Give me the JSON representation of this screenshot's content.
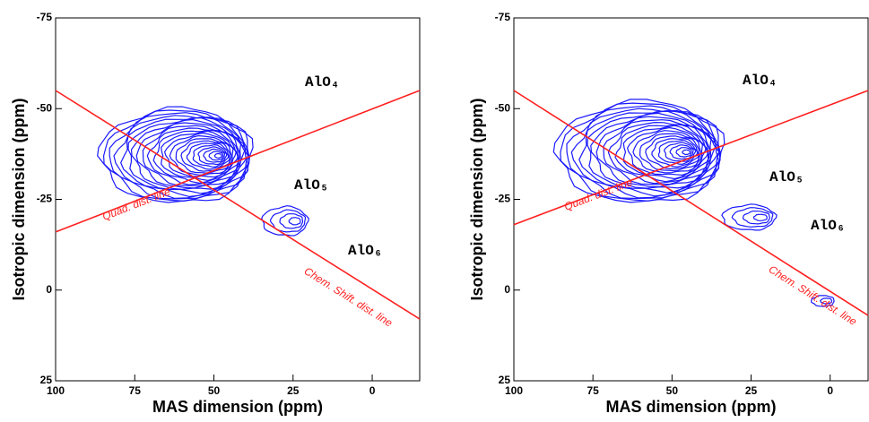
{
  "chart_data": [
    {
      "type": "contour",
      "xlabel": "MAS dimension (ppm)",
      "ylabel": "Isotropic dimension (ppm)",
      "xlim": [
        100,
        -15
      ],
      "xticks": [
        100,
        75,
        50,
        25,
        0
      ],
      "ylim": [
        -75,
        25
      ],
      "yticks": [
        -75,
        -50,
        -25,
        0,
        25
      ],
      "lines": [
        {
          "label": "Quad. dist. line",
          "color": "#ff2020",
          "x": [
            100,
            -15
          ],
          "y": [
            -16,
            -55
          ]
        },
        {
          "label": "Chem. Shift. dist. line",
          "color": "#ff2020",
          "x": [
            100,
            -15
          ],
          "y": [
            -55,
            8
          ]
        }
      ],
      "annotations": [
        "AlO₄",
        "AlO₅",
        "AlO₆"
      ],
      "contour_color": "#1a1aff"
    },
    {
      "type": "contour",
      "xlabel": "MAS dimension (ppm)",
      "ylabel": "Isotropic dimension (ppm)",
      "xlim": [
        100,
        -12
      ],
      "xticks": [
        100,
        75,
        50,
        25,
        0
      ],
      "ylim": [
        -75,
        25
      ],
      "yticks": [
        -75,
        -50,
        -25,
        0,
        25
      ],
      "lines": [
        {
          "label": "Quad. dist. line",
          "color": "#ff2020",
          "x": [
            100,
            -12
          ],
          "y": [
            -18,
            -55
          ]
        },
        {
          "label": "Chem. Shift. dist. line",
          "color": "#ff2020",
          "x": [
            100,
            -12
          ],
          "y": [
            -55,
            7
          ]
        }
      ],
      "annotations": [
        "AlO₄",
        "AlO₅",
        "AlO₆"
      ],
      "contour_color": "#1a1aff"
    }
  ]
}
